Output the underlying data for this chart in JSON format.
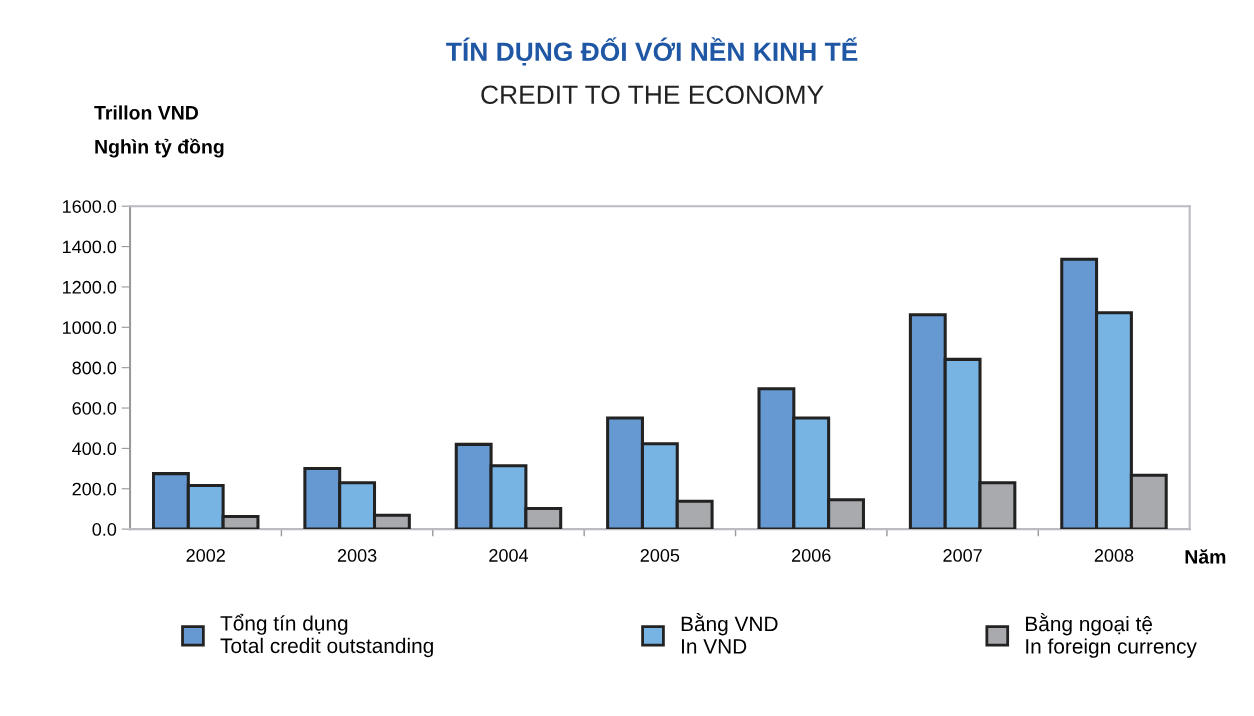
{
  "chart_data": {
    "type": "bar",
    "title": "TÍN DỤNG ĐỐI VỚI NỀN KINH TẾ",
    "subtitle": "CREDIT TO THE ECONOMY",
    "ylabel": "Trillon VND\nNghìn tỷ đồng",
    "xlabel": "Năm",
    "categories": [
      "2002",
      "2003",
      "2004",
      "2005",
      "2006",
      "2007",
      "2008"
    ],
    "series": [
      {
        "name": "Tổng tín dụng\nTotal credit outstanding",
        "color": "#6699d1",
        "values": [
          275,
          300,
          420,
          551,
          696,
          1062,
          1337
        ]
      },
      {
        "name": "Bằng VND\nIn VND",
        "color": "#78b4e3",
        "values": [
          216,
          230,
          314,
          423,
          551,
          841,
          1072
        ]
      },
      {
        "name": "Bằng ngoại tệ\nIn foreign currency",
        "color": "#a9aaad",
        "values": [
          63,
          69,
          102,
          138,
          146,
          230,
          267
        ]
      }
    ],
    "ylim": [
      0,
      1600
    ],
    "yticks": [
      {
        "value": 0,
        "label": "0.0"
      },
      {
        "value": 200,
        "label": "200.0"
      },
      {
        "value": 400,
        "label": "400.0"
      },
      {
        "value": 600,
        "label": "600.0"
      },
      {
        "value": 800,
        "label": "800.0"
      },
      {
        "value": 1000,
        "label": "1000.0"
      },
      {
        "value": 1200,
        "label": "1200.0"
      },
      {
        "value": 1400,
        "label": "1400.0"
      },
      {
        "value": 1600,
        "label": "1600.0"
      }
    ],
    "grid": false,
    "legend": "bottom"
  }
}
